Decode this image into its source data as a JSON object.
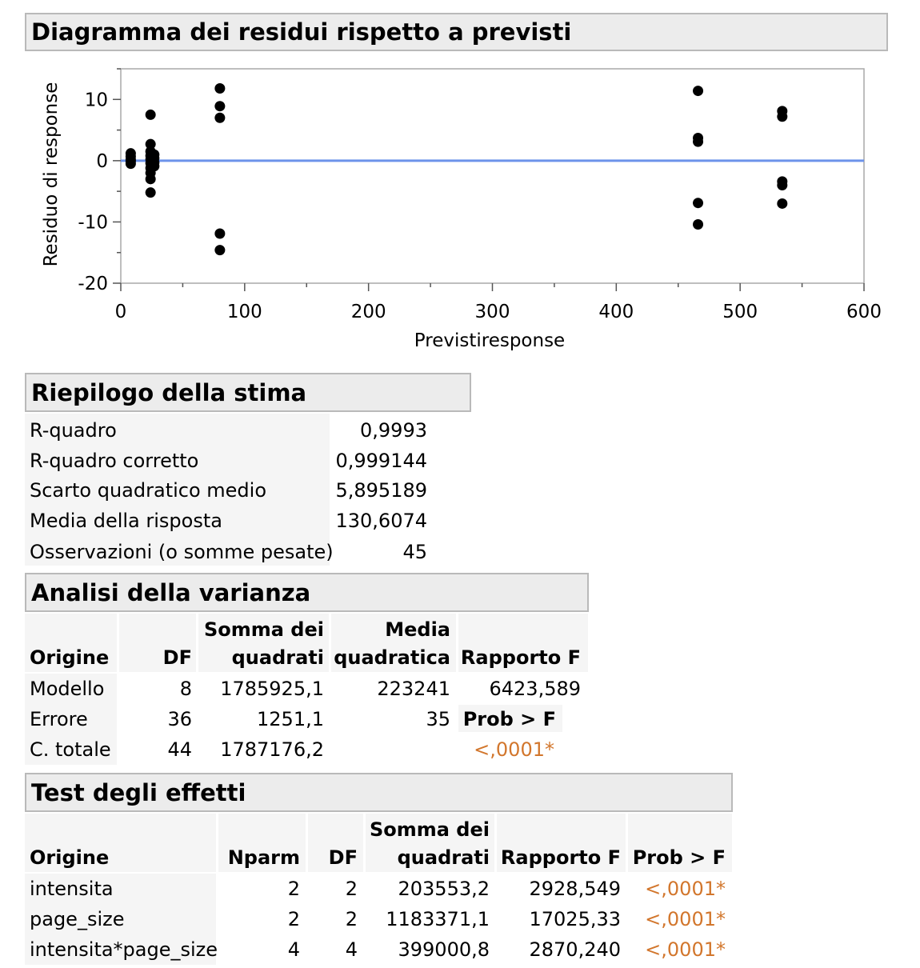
{
  "residual_plot": {
    "title": "Diagramma dei residui rispetto a previsti",
    "chart_data": {
      "type": "scatter",
      "title": "Diagramma dei residui rispetto a previsti",
      "xlabel": "Previstiresponse",
      "ylabel": "Residuo di response",
      "xlim": [
        0,
        600
      ],
      "ylim": [
        -20,
        15
      ],
      "x_ticks": [
        0,
        100,
        200,
        300,
        400,
        500,
        600
      ],
      "y_ticks": [
        10,
        0,
        -10,
        -20
      ],
      "reference_line_y": 0,
      "reference_line_color": "#6c93ea",
      "marker_color": "#000000",
      "grid": false,
      "points": [
        {
          "x": 8,
          "y": 1.2
        },
        {
          "x": 8,
          "y": 0.7
        },
        {
          "x": 8,
          "y": 0.2
        },
        {
          "x": 8,
          "y": -0.1
        },
        {
          "x": 8,
          "y": -0.5
        },
        {
          "x": 24,
          "y": 7.5
        },
        {
          "x": 24,
          "y": 2.7
        },
        {
          "x": 24,
          "y": 1.5
        },
        {
          "x": 24,
          "y": 0.8
        },
        {
          "x": 24,
          "y": 0.2
        },
        {
          "x": 24,
          "y": -0.4
        },
        {
          "x": 24,
          "y": -1.2
        },
        {
          "x": 24,
          "y": -2.0
        },
        {
          "x": 24,
          "y": -3.0
        },
        {
          "x": 24,
          "y": -5.2
        },
        {
          "x": 27,
          "y": 1.0
        },
        {
          "x": 27,
          "y": 0.4
        },
        {
          "x": 27,
          "y": -0.3
        },
        {
          "x": 27,
          "y": -0.9
        },
        {
          "x": 80,
          "y": 11.8
        },
        {
          "x": 80,
          "y": 8.9
        },
        {
          "x": 80,
          "y": 7.0
        },
        {
          "x": 80,
          "y": -11.9
        },
        {
          "x": 80,
          "y": -14.6
        },
        {
          "x": 466,
          "y": 11.4
        },
        {
          "x": 466,
          "y": 3.7
        },
        {
          "x": 466,
          "y": 3.1
        },
        {
          "x": 466,
          "y": -6.9
        },
        {
          "x": 466,
          "y": -10.4
        },
        {
          "x": 534,
          "y": 8.1
        },
        {
          "x": 534,
          "y": 7.2
        },
        {
          "x": 534,
          "y": -3.4
        },
        {
          "x": 534,
          "y": -4.0
        },
        {
          "x": 534,
          "y": -7.0
        }
      ]
    }
  },
  "summary": {
    "title": "Riepilogo della stima",
    "rows": [
      {
        "label": "R-quadro",
        "value": "0,9993"
      },
      {
        "label": "R-quadro corretto",
        "value": "0,999144"
      },
      {
        "label": "Scarto quadratico medio",
        "value": "5,895189"
      },
      {
        "label": "Media della risposta",
        "value": "130,6074"
      },
      {
        "label": "Osservazioni (o somme pesate)",
        "value": "45"
      }
    ]
  },
  "anova": {
    "title": "Analisi della varianza",
    "headers": {
      "origine": "Origine",
      "df": "DF",
      "ss_line1": "Somma dei",
      "ss_line2": "quadrati",
      "ms_line1": "Media",
      "ms_line2": "quadratica",
      "f": "Rapporto F"
    },
    "rows": [
      {
        "origine": "Modello",
        "df": "8",
        "ss": "1785925,1",
        "ms": "223241",
        "f": "6423,589"
      },
      {
        "origine": "Errore",
        "df": "36",
        "ss": "1251,1",
        "ms": "35",
        "f": "Prob > F"
      },
      {
        "origine": "C. totale",
        "df": "44",
        "ss": "1787176,2",
        "ms": "",
        "f": "<,0001*"
      }
    ]
  },
  "effects": {
    "title": "Test degli effetti",
    "headers": {
      "origine": "Origine",
      "nparm": "Nparm",
      "df": "DF",
      "ss_line1": "Somma dei",
      "ss_line2": "quadrati",
      "f": "Rapporto F",
      "p": "Prob > F"
    },
    "rows": [
      {
        "origine": "intensita",
        "nparm": "2",
        "df": "2",
        "ss": "203553,2",
        "f": "2928,549",
        "p": "<,0001*"
      },
      {
        "origine": "page_size",
        "nparm": "2",
        "df": "2",
        "ss": "1183371,1",
        "f": "17025,33",
        "p": "<,0001*"
      },
      {
        "origine": "intensita*page_size",
        "nparm": "4",
        "df": "4",
        "ss": "399000,8",
        "f": "2870,240",
        "p": "<,0001*"
      }
    ]
  }
}
